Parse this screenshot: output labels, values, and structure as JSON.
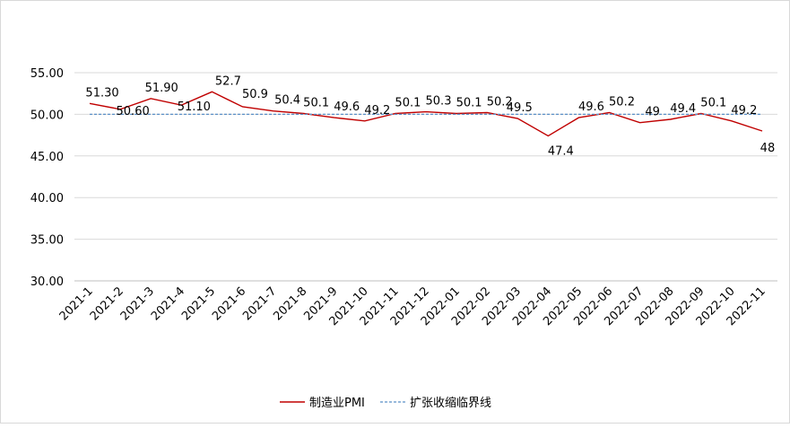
{
  "chart_data": {
    "type": "line",
    "categories": [
      "2021-1",
      "2021-2",
      "2021-3",
      "2021-4",
      "2021-5",
      "2021-6",
      "2021-7",
      "2021-8",
      "2021-9",
      "2021-10",
      "2021-11",
      "2021-12",
      "2022-01",
      "2022-02",
      "2022-03",
      "2022-04",
      "2022-05",
      "2022-06",
      "2022-07",
      "2022-08",
      "2022-09",
      "2022-10",
      "2022-11"
    ],
    "series": [
      {
        "name": "制造业PMI",
        "color": "#c00000",
        "style": "solid",
        "values": [
          51.3,
          50.6,
          51.9,
          51.1,
          52.7,
          50.9,
          50.4,
          50.1,
          49.6,
          49.2,
          50.1,
          50.3,
          50.1,
          50.2,
          49.5,
          47.4,
          49.6,
          50.2,
          49,
          49.4,
          50.1,
          49.2,
          48
        ],
        "labels": [
          "51.30",
          "50.60",
          "51.90",
          "51.10",
          "52.7",
          "50.9",
          "50.4",
          "50.1",
          "49.6",
          "49.2",
          "50.1",
          "50.3",
          "50.1",
          "50.2",
          "49.5",
          "47.4",
          "49.6",
          "50.2",
          "49",
          "49.4",
          "50.1",
          "49.2",
          "48"
        ]
      },
      {
        "name": "扩张收缩临界线",
        "color": "#5b8fc7",
        "style": "dashed",
        "values": [
          50,
          50,
          50,
          50,
          50,
          50,
          50,
          50,
          50,
          50,
          50,
          50,
          50,
          50,
          50,
          50,
          50,
          50,
          50,
          50,
          50,
          50,
          50
        ]
      }
    ],
    "yticks": [
      "55.00",
      "50.00",
      "45.00",
      "40.00",
      "35.00",
      "30.00"
    ],
    "ylim": [
      30,
      55
    ],
    "grid": true,
    "legend_position": "bottom"
  }
}
